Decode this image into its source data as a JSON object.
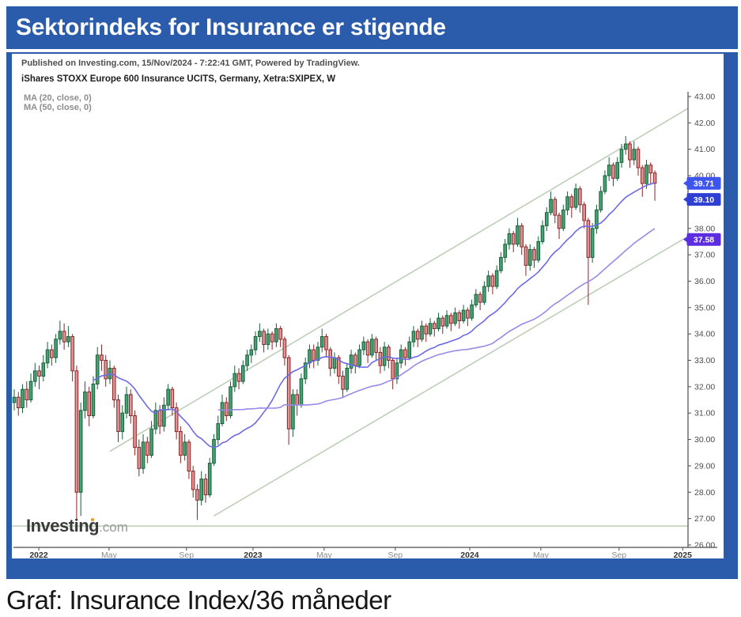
{
  "header": {
    "title": "Sektorindeks for Insurance er stigende",
    "frame_color": "#2b5bab"
  },
  "meta": {
    "published": "Published on Investing.com, 15/Nov/2024 - 7:22:41 GMT, Powered by TradingView.",
    "instrument": "iShares STOXX Europe 600 Insurance UCITS, Germany, Xetra:SXIPEX, W",
    "ma_labels": [
      "MA (20, close, 0)",
      "MA (50, close, 0)"
    ]
  },
  "watermark": {
    "brand": "Investing",
    "suffix": ".com",
    "dot_color": "#f6901e"
  },
  "caption": "Graf: Insurance Index/36 måneder",
  "chart_data": {
    "type": "candlestick",
    "title": "iShares STOXX Europe 600 Insurance UCITS, Xetra:SXIPEX, Weekly",
    "interval": "W",
    "span": "36 months (Nov 2021 - Nov 2024)",
    "grid": false,
    "y_axis": {
      "side": "right",
      "min": 25.9,
      "max": 43.3,
      "tick_step": 1.0,
      "labels": [
        "43.00",
        "42.00",
        "41.00",
        "40.00",
        "39.00",
        "38.00",
        "37.00",
        "36.00",
        "35.00",
        "34.00",
        "33.00",
        "32.00",
        "31.00",
        "30.00",
        "29.00",
        "28.00",
        "27.00",
        "26.00"
      ]
    },
    "x_ticks": [
      {
        "label": "2022",
        "week": 5.9,
        "bold": true
      },
      {
        "label": "May",
        "week": 22.8,
        "bold": false
      },
      {
        "label": "Sep",
        "week": 41.4,
        "bold": false
      },
      {
        "label": "2023",
        "week": 57.4,
        "bold": true
      },
      {
        "label": "May",
        "week": 74.5,
        "bold": false
      },
      {
        "label": "Sep",
        "week": 91.6,
        "bold": false
      },
      {
        "label": "2024",
        "week": 109.5,
        "bold": true
      },
      {
        "label": "May",
        "week": 126.6,
        "bold": false
      },
      {
        "label": "Sep",
        "week": 145.4,
        "bold": false
      },
      {
        "label": "2025",
        "week": 160.7,
        "bold": true
      }
    ],
    "price_labels": [
      {
        "text": "39.71",
        "price": 39.71,
        "color": "#3d55ee",
        "role": "last-price"
      },
      {
        "text": "39.10",
        "price": 39.1,
        "color": "#2e3fd4",
        "role": "ma20-value"
      },
      {
        "text": "37.58",
        "price": 37.58,
        "color": "#5c2de0",
        "role": "ma50-value"
      }
    ],
    "overlays": [
      {
        "name": "MA20",
        "period": 20,
        "source": "close",
        "color": "#6b6be6"
      },
      {
        "name": "MA50",
        "period": 50,
        "source": "close",
        "color": "#9a8ae8"
      }
    ],
    "trendlines": [
      {
        "role": "channel-upper",
        "x1_week": 23,
        "price1": 29.55,
        "x2_week": 162,
        "price2": 42.55,
        "color": "#b9cdb3"
      },
      {
        "role": "channel-lower",
        "x1_week": 48,
        "price1": 27.1,
        "x2_week": 162,
        "price2": 37.7,
        "color": "#b9cdb3"
      },
      {
        "role": "support-horizontal",
        "x1_week": -0.5,
        "price1": 26.72,
        "x2_week": 162,
        "price2": 26.72,
        "color": "#b9cdb3"
      }
    ],
    "colors": {
      "up_fill": "#47a172",
      "up_border": "#17603a",
      "down_fill": "#df9595",
      "down_border": "#8c2424",
      "axis": "#4d4d4d",
      "tick_label": "#4d4d4d",
      "month_label": "#8a8a8a",
      "year_label": "#333333"
    },
    "candles_ohlc": [
      [
        31.4,
        31.9,
        31.1,
        31.6
      ],
      [
        31.6,
        31.8,
        30.9,
        31.2
      ],
      [
        31.2,
        32.1,
        31.0,
        31.9
      ],
      [
        31.9,
        32.2,
        31.2,
        31.5
      ],
      [
        31.5,
        32.5,
        31.4,
        32.2
      ],
      [
        32.2,
        32.9,
        32.0,
        32.6
      ],
      [
        32.6,
        32.8,
        31.9,
        32.4
      ],
      [
        32.4,
        33.2,
        32.2,
        32.9
      ],
      [
        32.9,
        33.7,
        32.7,
        33.4
      ],
      [
        33.4,
        33.6,
        32.8,
        33.1
      ],
      [
        33.1,
        34.0,
        32.9,
        33.8
      ],
      [
        33.8,
        34.5,
        33.6,
        34.1
      ],
      [
        34.1,
        34.4,
        33.4,
        33.7
      ],
      [
        33.7,
        34.3,
        33.5,
        33.9
      ],
      [
        33.9,
        34.0,
        32.2,
        32.6
      ],
      [
        32.6,
        32.8,
        26.9,
        28.0
      ],
      [
        28.0,
        31.4,
        27.1,
        31.1
      ],
      [
        31.1,
        32.2,
        30.8,
        31.8
      ],
      [
        31.8,
        32.0,
        30.5,
        30.9
      ],
      [
        30.9,
        32.4,
        30.8,
        32.1
      ],
      [
        32.1,
        33.5,
        31.9,
        33.2
      ],
      [
        33.2,
        33.6,
        32.6,
        33.0
      ],
      [
        33.0,
        33.2,
        32.0,
        32.3
      ],
      [
        32.3,
        33.0,
        32.1,
        32.7
      ],
      [
        32.7,
        32.8,
        31.2,
        31.5
      ],
      [
        31.5,
        31.7,
        29.9,
        30.3
      ],
      [
        30.3,
        31.3,
        30.0,
        31.0
      ],
      [
        31.0,
        32.0,
        30.8,
        31.7
      ],
      [
        31.7,
        31.9,
        30.6,
        30.9
      ],
      [
        30.9,
        31.1,
        29.4,
        29.7
      ],
      [
        29.7,
        30.0,
        28.6,
        28.9
      ],
      [
        28.9,
        30.2,
        28.7,
        29.9
      ],
      [
        29.9,
        30.1,
        29.1,
        29.4
      ],
      [
        29.4,
        30.7,
        29.3,
        30.4
      ],
      [
        30.4,
        31.4,
        30.2,
        31.1
      ],
      [
        31.1,
        31.3,
        30.2,
        30.5
      ],
      [
        30.5,
        31.6,
        30.3,
        31.3
      ],
      [
        31.3,
        32.1,
        31.1,
        31.9
      ],
      [
        31.9,
        32.0,
        30.9,
        31.2
      ],
      [
        31.2,
        31.4,
        30.0,
        30.3
      ],
      [
        30.3,
        30.5,
        29.1,
        29.4
      ],
      [
        29.4,
        30.2,
        29.2,
        29.9
      ],
      [
        29.9,
        30.0,
        28.5,
        28.8
      ],
      [
        28.8,
        29.0,
        27.8,
        28.1
      ],
      [
        28.1,
        28.3,
        26.95,
        27.7
      ],
      [
        27.7,
        28.8,
        27.5,
        28.5
      ],
      [
        28.5,
        28.7,
        27.6,
        27.9
      ],
      [
        27.9,
        29.3,
        27.8,
        29.1
      ],
      [
        29.1,
        30.2,
        29.0,
        30.0
      ],
      [
        30.0,
        30.9,
        29.8,
        30.6
      ],
      [
        30.6,
        31.7,
        30.5,
        31.4
      ],
      [
        31.4,
        31.6,
        30.7,
        30.9
      ],
      [
        30.9,
        32.2,
        30.8,
        32.0
      ],
      [
        32.0,
        32.8,
        31.8,
        32.5
      ],
      [
        32.5,
        32.7,
        31.9,
        32.2
      ],
      [
        32.2,
        33.0,
        32.1,
        32.8
      ],
      [
        32.8,
        33.4,
        32.6,
        33.2
      ],
      [
        33.2,
        33.6,
        32.9,
        33.4
      ],
      [
        33.4,
        34.1,
        33.2,
        33.9
      ],
      [
        33.9,
        34.4,
        33.7,
        34.1
      ],
      [
        34.1,
        34.2,
        33.3,
        33.6
      ],
      [
        33.6,
        34.2,
        33.4,
        34.0
      ],
      [
        34.0,
        34.1,
        33.4,
        33.7
      ],
      [
        33.7,
        34.4,
        33.5,
        34.2
      ],
      [
        34.2,
        34.3,
        33.5,
        33.8
      ],
      [
        33.8,
        33.9,
        32.8,
        33.1
      ],
      [
        33.1,
        33.2,
        29.8,
        30.4
      ],
      [
        30.4,
        31.9,
        30.1,
        31.7
      ],
      [
        31.7,
        31.9,
        30.9,
        31.3
      ],
      [
        31.3,
        32.5,
        31.2,
        32.3
      ],
      [
        32.3,
        33.1,
        32.1,
        32.9
      ],
      [
        32.9,
        33.6,
        32.7,
        33.4
      ],
      [
        33.4,
        33.6,
        32.7,
        33.0
      ],
      [
        33.0,
        33.7,
        32.8,
        33.5
      ],
      [
        33.5,
        34.2,
        33.3,
        33.9
      ],
      [
        33.9,
        34.0,
        33.1,
        33.4
      ],
      [
        33.4,
        33.5,
        32.4,
        32.7
      ],
      [
        32.7,
        33.3,
        32.5,
        33.1
      ],
      [
        33.1,
        33.2,
        32.1,
        32.4
      ],
      [
        32.4,
        32.6,
        31.6,
        31.9
      ],
      [
        31.9,
        32.9,
        31.8,
        32.7
      ],
      [
        32.7,
        33.4,
        32.5,
        33.2
      ],
      [
        33.2,
        33.3,
        32.5,
        32.8
      ],
      [
        32.8,
        33.6,
        32.7,
        33.4
      ],
      [
        33.4,
        33.9,
        33.2,
        33.7
      ],
      [
        33.7,
        33.8,
        32.9,
        33.2
      ],
      [
        33.2,
        34.0,
        33.1,
        33.8
      ],
      [
        33.8,
        33.9,
        33.0,
        33.3
      ],
      [
        33.3,
        33.5,
        32.5,
        32.8
      ],
      [
        32.8,
        33.7,
        32.6,
        33.5
      ],
      [
        33.5,
        33.6,
        32.7,
        33.0
      ],
      [
        33.0,
        33.1,
        31.9,
        32.3
      ],
      [
        32.3,
        33.1,
        32.1,
        32.9
      ],
      [
        32.9,
        33.6,
        32.7,
        33.4
      ],
      [
        33.4,
        33.5,
        32.8,
        33.1
      ],
      [
        33.1,
        33.9,
        33.0,
        33.7
      ],
      [
        33.7,
        34.3,
        33.5,
        34.1
      ],
      [
        34.1,
        34.2,
        33.5,
        33.8
      ],
      [
        33.8,
        34.5,
        33.7,
        34.3
      ],
      [
        34.3,
        34.4,
        33.7,
        34.0
      ],
      [
        34.0,
        34.6,
        33.9,
        34.4
      ],
      [
        34.4,
        34.5,
        33.9,
        34.2
      ],
      [
        34.2,
        34.8,
        34.1,
        34.6
      ],
      [
        34.6,
        34.7,
        34.0,
        34.3
      ],
      [
        34.3,
        34.9,
        34.2,
        34.7
      ],
      [
        34.7,
        34.8,
        34.1,
        34.4
      ],
      [
        34.4,
        35.0,
        34.3,
        34.8
      ],
      [
        34.8,
        34.9,
        34.2,
        34.5
      ],
      [
        34.5,
        35.1,
        34.4,
        34.9
      ],
      [
        34.9,
        35.0,
        34.3,
        34.6
      ],
      [
        34.6,
        35.3,
        34.5,
        35.1
      ],
      [
        35.1,
        35.7,
        35.0,
        35.5
      ],
      [
        35.5,
        35.6,
        34.9,
        35.2
      ],
      [
        35.2,
        36.0,
        35.1,
        35.8
      ],
      [
        35.8,
        36.4,
        35.6,
        36.2
      ],
      [
        36.2,
        36.3,
        35.5,
        35.8
      ],
      [
        35.8,
        36.6,
        35.7,
        36.4
      ],
      [
        36.4,
        37.1,
        36.3,
        36.9
      ],
      [
        36.9,
        37.6,
        36.7,
        37.4
      ],
      [
        37.4,
        38.0,
        37.2,
        37.8
      ],
      [
        37.8,
        37.9,
        37.1,
        37.4
      ],
      [
        37.4,
        38.4,
        37.3,
        38.1
      ],
      [
        38.1,
        38.2,
        37.0,
        37.3
      ],
      [
        37.3,
        37.4,
        36.2,
        36.6
      ],
      [
        36.6,
        37.4,
        36.4,
        37.2
      ],
      [
        37.2,
        37.3,
        36.5,
        36.8
      ],
      [
        36.8,
        37.7,
        36.7,
        37.5
      ],
      [
        37.5,
        38.3,
        37.4,
        38.1
      ],
      [
        38.1,
        38.8,
        37.9,
        38.6
      ],
      [
        38.6,
        39.4,
        38.5,
        39.1
      ],
      [
        39.1,
        39.2,
        38.2,
        38.5
      ],
      [
        38.5,
        38.6,
        37.6,
        38.0
      ],
      [
        38.0,
        38.9,
        37.9,
        38.7
      ],
      [
        38.7,
        39.4,
        38.5,
        39.2
      ],
      [
        39.2,
        39.3,
        38.4,
        38.8
      ],
      [
        38.8,
        39.7,
        38.7,
        39.5
      ],
      [
        39.5,
        39.6,
        38.6,
        38.9
      ],
      [
        38.9,
        39.0,
        38.0,
        38.3
      ],
      [
        38.3,
        38.4,
        35.1,
        36.9
      ],
      [
        36.9,
        38.2,
        36.7,
        38.0
      ],
      [
        38.0,
        38.9,
        37.8,
        38.7
      ],
      [
        38.7,
        39.6,
        38.6,
        39.4
      ],
      [
        39.4,
        40.2,
        39.3,
        40.0
      ],
      [
        40.0,
        40.7,
        39.8,
        40.4
      ],
      [
        40.4,
        40.5,
        39.6,
        39.9
      ],
      [
        39.9,
        40.7,
        39.8,
        40.5
      ],
      [
        40.5,
        41.2,
        40.3,
        41.0
      ],
      [
        41.0,
        41.5,
        40.8,
        41.2
      ],
      [
        41.2,
        41.3,
        40.3,
        40.6
      ],
      [
        40.6,
        41.3,
        40.4,
        41.0
      ],
      [
        41.0,
        41.1,
        40.0,
        40.3
      ],
      [
        40.3,
        40.4,
        39.2,
        39.7
      ],
      [
        39.7,
        40.6,
        39.5,
        40.4
      ],
      [
        40.4,
        40.5,
        39.7,
        40.1
      ],
      [
        40.1,
        40.2,
        39.05,
        39.71
      ]
    ]
  }
}
